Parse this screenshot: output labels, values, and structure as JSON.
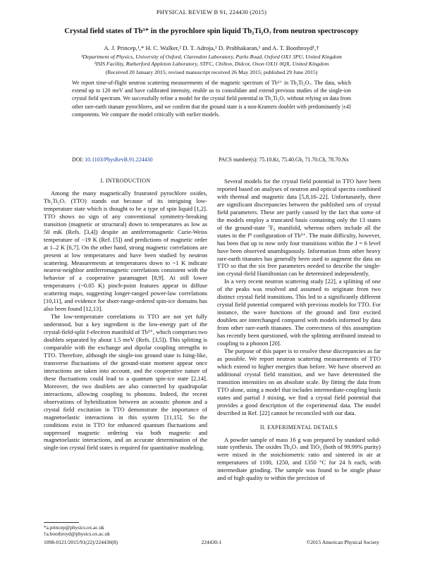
{
  "header": "PHYSICAL REVIEW B 91, 224430 (2015)",
  "title": "Crystal field states of Tb³⁺ in the pyrochlore spin liquid Tb₂Ti₂O₇ from neutron spectroscopy",
  "authors": "A. J. Princep,¹,* H. C. Walker,² D. T. Adroja,² D. Prabhakaran,¹ and A. T. Boothroyd¹,†",
  "affiliations": [
    "¹Department of Physics, University of Oxford, Clarendon Laboratory, Parks Road, Oxford OX1 3PU, United Kingdom",
    "²ISIS Facility, Rutherford Appleton Laboratory, STFC, Chilton, Didcot, Oxon OX11 0QX, United Kingdom"
  ],
  "received": "(Received 20 January 2015; revised manuscript received 26 May 2015; published 29 June 2015)",
  "abstract": "We report time-of-flight neutron scattering measurements of the magnetic spectrum of Tb³⁺ in Tb₂Ti₂O₇. The data, which extend up to 120 meV and have calibrated intensity, enable us to consolidate and extend previous studies of the single-ion crystal field spectrum. We successfully refine a model for the crystal field potential in Tb₂Ti₂O₇ without relying on data from other rare-earth titanate pyrochlores, and we confirm that the ground state is a non-Kramers doublet with predominantly |±4⟩ components. We compare the model critically with earlier models.",
  "doi_label": "DOI:",
  "doi": "10.1103/PhysRevB.91.224430",
  "pacs": "PACS number(s): 75.10.Kt, 75.40.Gb, 71.70.Ch, 78.70.Nx",
  "sections": [
    {
      "heading": "I. INTRODUCTION",
      "paragraphs": [
        "Among the many magnetically frustrated pyrochlore oxides, Tb₂Ti₂O₇ (TTO) stands out because of its intriguing low-temperature state which is thought to be a type of spin liquid [1,2]. TTO shows no sign of any conventional symmetry-breaking transition (magnetic or structural) down to temperatures as low as 50 mK (Refs. [3,4]) despite an antiferromagnetic Curie-Weiss temperature of −19 K (Ref. [5]) and predictions of magnetic order at 1–2 K [6,7]. On the other hand, strong magnetic correlations are present at low temperatures and have been studied by neutron scattering. Measurements at temperatures down to ~1 K indicate nearest-neighbor antiferromagnetic correlations consistent with the behavior of a cooperative paramagnet [8,9]. At still lower temperatures (~0.05 K) pinch-point features appear in diffuse scattering maps, suggesting longer-ranged power-law correlations [10,11], and evidence for short-range-ordered spin-ice domains has also been found [12,13].",
        "The low-temperature correlations in TTO are not yet fully understood, but a key ingredient is the low-energy part of the crystal-field-split f-electron manifold of Tb³⁺, which comprises two doublets separated by about 1.5 meV (Refs. [3,5]). This splitting is comparable with the exchange and dipolar coupling strengths in TTO. Therefore, although the single-ion ground state is Ising-like, transverse fluctuations of the ground-state moment appear once interactions are taken into account, and the cooperative nature of these fluctuations could lead to a quantum spin-ice state [2,14]. Moreover, the two doublets are also connected by quadrupolar interactions, allowing coupling to phonons. Indeed, the recent observations of hybridization between an acoustic phonon and a crystal field excitation in TTO demonstrate the importance of magnetoelastic interactions in this system [11,15]. So the conditions exist in TTO for enhanced quantum fluctuations and suppressed magnetic ordering via both magnetic and magnetoelastic interactions, and an accurate determination of the single-ion crystal field states is required for quantitative modeling.",
        "Several models for the crystal field potential in TTO have been reported based on analyses of neutron and optical spectra combined with thermal and magnetic data [5,8,16–22]. Unfortunately, there are significant discrepancies between the published sets of crystal field parameters. These are partly caused by the fact that some of the models employ a truncated basis containing only the 13 states of the ground-state ⁷F₆ manifold, whereas others include all the states in the f⁸ configuration of Tb³⁺. The main difficulty, however, has been that up to now only four transitions within the J = 6 level have been observed unambiguously. Information from other heavy rare-earth titanates has generally been used to augment the data on TTO so that the six free parameters needed to describe the single-ion crystal-field Hamiltonian can be determined independently.",
        "In a very recent neutron scattering study [22], a splitting of one of the peaks was resolved and assumed to originate from two distinct crystal field transitions. This led to a significantly different crystal field potential compared with previous models for TTO. For instance, the wave functions of the ground and first excited doublets are interchanged compared with models informed by data from other rare-earth titanates. The correctness of this assumption has recently been questioned, with the splitting attributed instead to coupling to a phonon [20].",
        "The purpose of this paper is to resolve these discrepancies as far as possible. We report neutron scattering measurements of TTO which extend to higher energies than before. We have observed an additional crystal field transition, and we have determined the transition intensities on an absolute scale. By fitting the data from TTO alone, using a model that includes intermediate-coupling basis states and partial J mixing, we find a crystal field potential that provides a good description of the experimental data. The model described in Ref. [22] cannot be reconciled with our data."
      ]
    },
    {
      "heading": "II. EXPERIMENTAL DETAILS",
      "paragraphs": [
        "A powder sample of mass 16 g was prepared by standard solid-state synthesis. The oxides Tb₄O₇ and TiO₂ (both of 99.99% purity) were mixed in the stoichiometric ratio and sintered in air at temperatures of 1100, 1250, and 1350 °C for 24 h each, with intermediate grinding. The sample was found to be single phase and of high quality to within the precision of"
      ]
    }
  ],
  "footnotes": [
    "*a.princep@physics.ox.ac.uk",
    "†a.boothroyd@physics.ox.ac.uk"
  ],
  "footer": {
    "left": "1098-0121/2015/91(22)/224430(8)",
    "center": "224430-1",
    "right": "©2015 American Physical Society"
  }
}
